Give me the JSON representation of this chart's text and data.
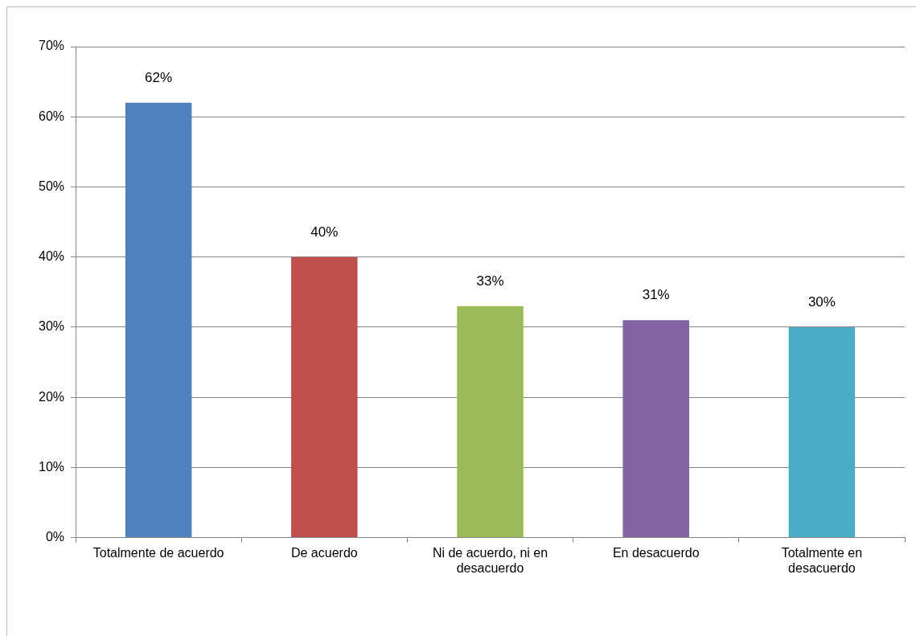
{
  "chart_data": {
    "type": "bar",
    "categories": [
      "Totalmente de acuerdo",
      "De acuerdo",
      "Ni de acuerdo, ni en desacuerdo",
      "En desacuerdo",
      "Totalmente en desacuerdo"
    ],
    "values": [
      62,
      40,
      33,
      31,
      30
    ],
    "colors": [
      "#4f81bd",
      "#c0504d",
      "#9bbb59",
      "#8064a2",
      "#4bacc6"
    ],
    "value_labels": [
      "62%",
      "40%",
      "33%",
      "31%",
      "30%"
    ],
    "ylim": [
      0,
      70
    ],
    "yticks": [
      {
        "value": 0,
        "label": "0%"
      },
      {
        "value": 10,
        "label": "10%"
      },
      {
        "value": 20,
        "label": "20%"
      },
      {
        "value": 30,
        "label": "30%"
      },
      {
        "value": 40,
        "label": "40%"
      },
      {
        "value": 50,
        "label": "50%"
      },
      {
        "value": 60,
        "label": "60%"
      },
      {
        "value": 70,
        "label": "70%"
      }
    ],
    "grid": "y",
    "legend": false
  }
}
